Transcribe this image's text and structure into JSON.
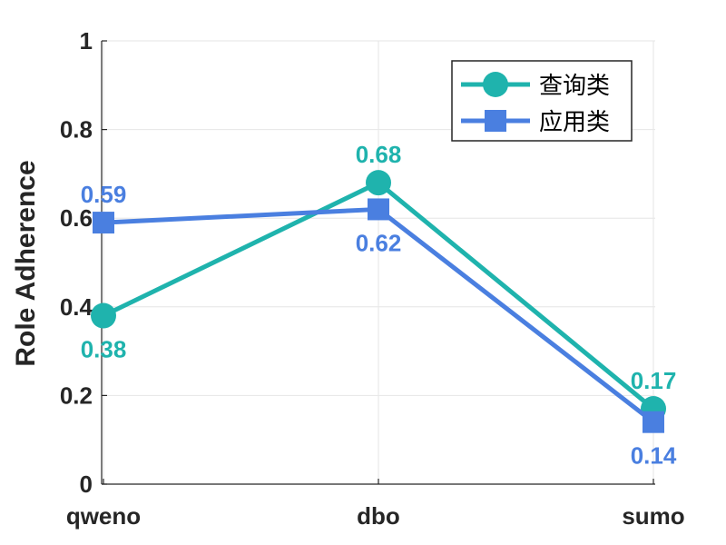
{
  "chart_data": {
    "type": "line",
    "categories": [
      "qweno",
      "dbo",
      "sumo"
    ],
    "series": [
      {
        "name": "查询类",
        "values": [
          0.38,
          0.68,
          0.17
        ],
        "color": "#1fb3ad",
        "marker": "circle",
        "labels": [
          "0.38",
          "0.68",
          "0.17"
        ],
        "label_pos": [
          "below",
          "above",
          "above"
        ]
      },
      {
        "name": "应用类",
        "values": [
          0.59,
          0.62,
          0.14
        ],
        "color": "#4a7fe0",
        "marker": "square",
        "labels": [
          "0.59",
          "0.62",
          "0.14"
        ],
        "label_pos": [
          "above",
          "below",
          "below"
        ]
      }
    ],
    "ylabel": "Role Adherence",
    "xlabel": "",
    "ylim": [
      0,
      1
    ],
    "yticks": [
      0,
      0.2,
      0.4,
      0.6,
      0.8,
      1
    ],
    "ytick_labels": [
      "0",
      "0.2",
      "0.4",
      "0.6",
      "0.8",
      "1"
    ],
    "grid": true,
    "legend_position": "top-right"
  }
}
